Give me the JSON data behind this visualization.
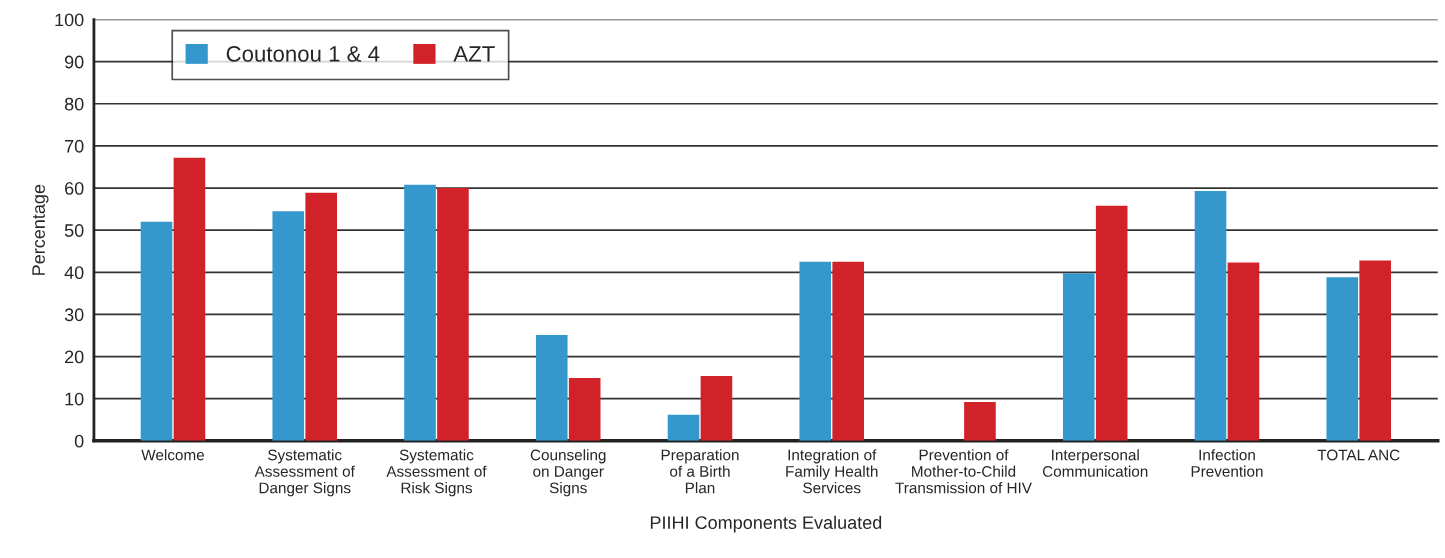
{
  "chart_data": {
    "type": "bar",
    "xlabel": "PIIHI Components Evaluated",
    "ylabel": "Percentage",
    "categories": [
      "Welcome",
      "Systematic\nAssessment of\nDanger Signs",
      "Systematic\nAssessment of\nRisk Signs",
      "Counseling\non Danger\nSigns",
      "Preparation\nof a Birth\nPlan",
      "Integration of\nFamily Health\nServices",
      "Prevention of\nMother-to-Child\nTransmission of HIV",
      "Interpersonal\nCommunication",
      "Infection\nPrevention",
      "TOTAL ANC"
    ],
    "series": [
      {
        "name": "Coutonou 1 & 4",
        "color": "#3498cd",
        "values": [
          52,
          54.5,
          60.8,
          25.1,
          6.2,
          42.5,
          null,
          39.8,
          59.3,
          38.8
        ]
      },
      {
        "name": "AZT",
        "color": "#d12229",
        "values": [
          67.2,
          58.9,
          60,
          14.9,
          15.4,
          42.5,
          9.2,
          55.8,
          42.3,
          42.8
        ]
      }
    ],
    "ylim": [
      0,
      100
    ],
    "yticks": [
      0,
      10,
      20,
      30,
      40,
      50,
      60,
      70,
      80,
      90,
      100
    ],
    "grid": "y",
    "legend": "top left"
  }
}
